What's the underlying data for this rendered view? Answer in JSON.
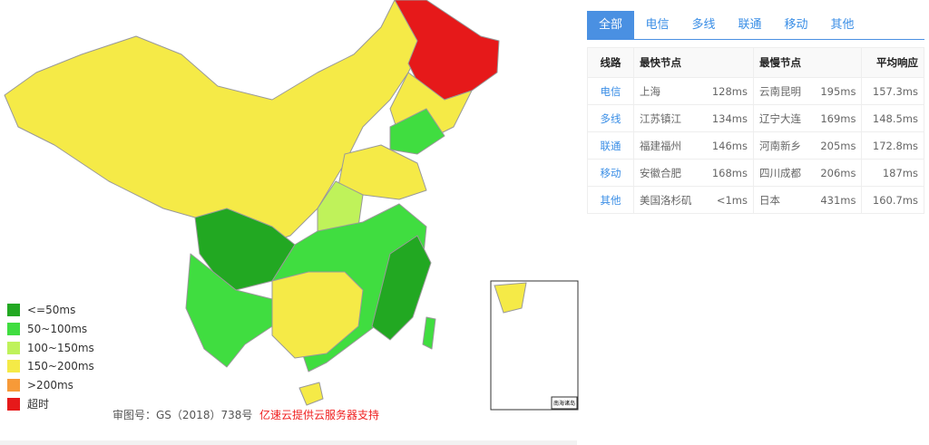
{
  "colors": {
    "lt50": "#22a822",
    "r50_100": "#40dd40",
    "r100_150": "#bff25a",
    "r150_200": "#f5ea47",
    "gt200": "#f79a38",
    "timeout": "#e6191a"
  },
  "legend": [
    {
      "label": "<=50ms",
      "color": "#22a822"
    },
    {
      "label": "50~100ms",
      "color": "#40dd40"
    },
    {
      "label": "100~150ms",
      "color": "#bff25a"
    },
    {
      "label": "150~200ms",
      "color": "#f5ea47"
    },
    {
      "label": ">200ms",
      "color": "#f79a38"
    },
    {
      "label": "超时",
      "color": "#e6191a"
    }
  ],
  "footer": {
    "approval": "审图号：GS（2018）738号",
    "sponsor": "亿速云提供云服务器支持"
  },
  "tabs": [
    {
      "label": "全部",
      "active": true
    },
    {
      "label": "电信"
    },
    {
      "label": "多线"
    },
    {
      "label": "联通"
    },
    {
      "label": "移动"
    },
    {
      "label": "其他"
    }
  ],
  "table": {
    "headers": [
      "线路",
      "最快节点",
      "最慢节点",
      "平均响应"
    ],
    "rows": [
      {
        "line": "电信",
        "fast": "上海",
        "fast_ms": "128ms",
        "slow": "云南昆明",
        "slow_ms": "195ms",
        "avg": "157.3ms"
      },
      {
        "line": "多线",
        "fast": "江苏镇江",
        "fast_ms": "134ms",
        "slow": "辽宁大连",
        "slow_ms": "169ms",
        "avg": "148.5ms"
      },
      {
        "line": "联通",
        "fast": "福建福州",
        "fast_ms": "146ms",
        "slow": "河南新乡",
        "slow_ms": "205ms",
        "avg": "172.8ms"
      },
      {
        "line": "移动",
        "fast": "安徽合肥",
        "fast_ms": "168ms",
        "slow": "四川成都",
        "slow_ms": "206ms",
        "avg": "187ms"
      },
      {
        "line": "其他",
        "fast": "美国洛杉矶",
        "fast_ms": "<1ms",
        "slow": "日本",
        "slow_ms": "431ms",
        "avg": "160.7ms"
      }
    ]
  },
  "inset_label": "南海诸岛"
}
